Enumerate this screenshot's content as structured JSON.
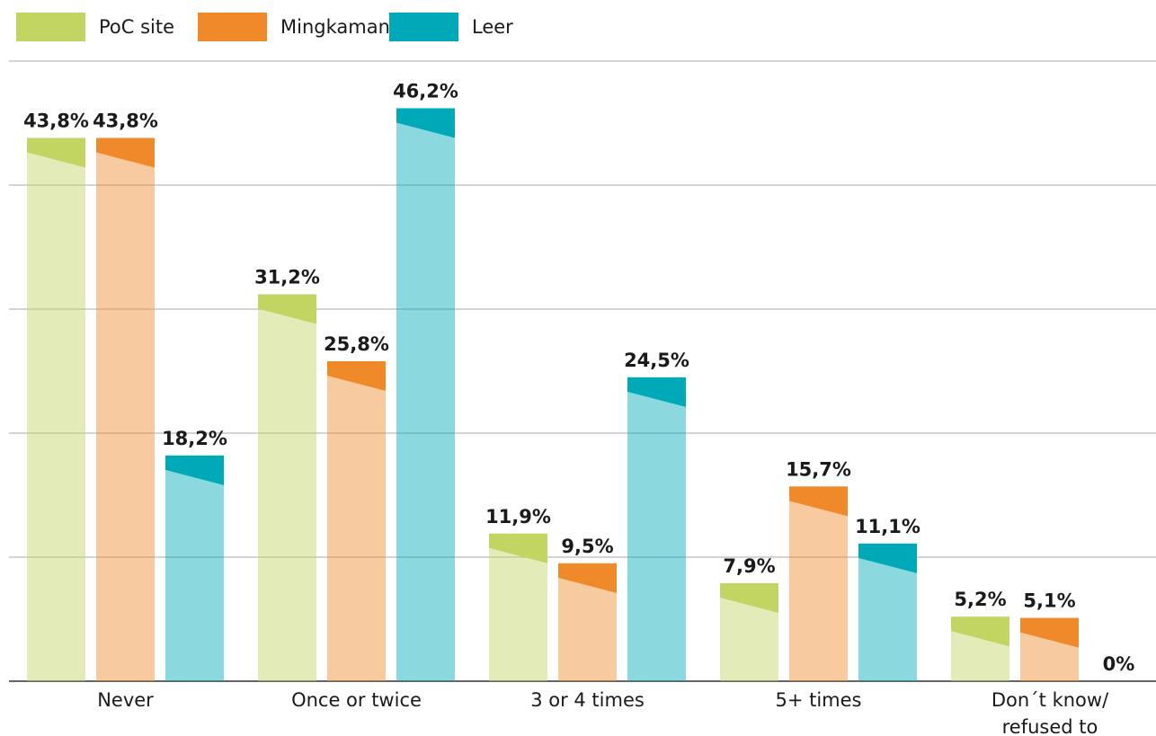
{
  "chart_data": {
    "type": "bar",
    "categories": [
      "Never",
      "Once or twice",
      "3 or 4 times",
      "5+ times",
      "Don´t know/ refused to answer"
    ],
    "series": [
      {
        "name": "PoC site",
        "color": "#c2d563",
        "values": [
          43.8,
          31.2,
          11.9,
          7.9,
          5.2
        ],
        "value_labels": [
          "43,8%",
          "31,2%",
          "11,9%",
          "7,9%",
          "5,2%"
        ]
      },
      {
        "name": "Mingkaman",
        "color": "#f0892a",
        "values": [
          43.8,
          25.8,
          9.5,
          15.7,
          5.1
        ],
        "value_labels": [
          "43,8%",
          "25,8%",
          "9,5%",
          "15,7%",
          "5,1%"
        ]
      },
      {
        "name": "Leer",
        "color": "#00a9b8",
        "values": [
          18.2,
          46.2,
          24.5,
          11.1,
          0
        ],
        "value_labels": [
          "18,2%",
          "46,2%",
          "24,5%",
          "11,1%",
          "0%"
        ]
      }
    ],
    "ylim": [
      0,
      50
    ],
    "yticks": [
      0,
      10,
      20,
      30,
      40,
      50
    ],
    "grid": true,
    "legend": "top-left"
  }
}
